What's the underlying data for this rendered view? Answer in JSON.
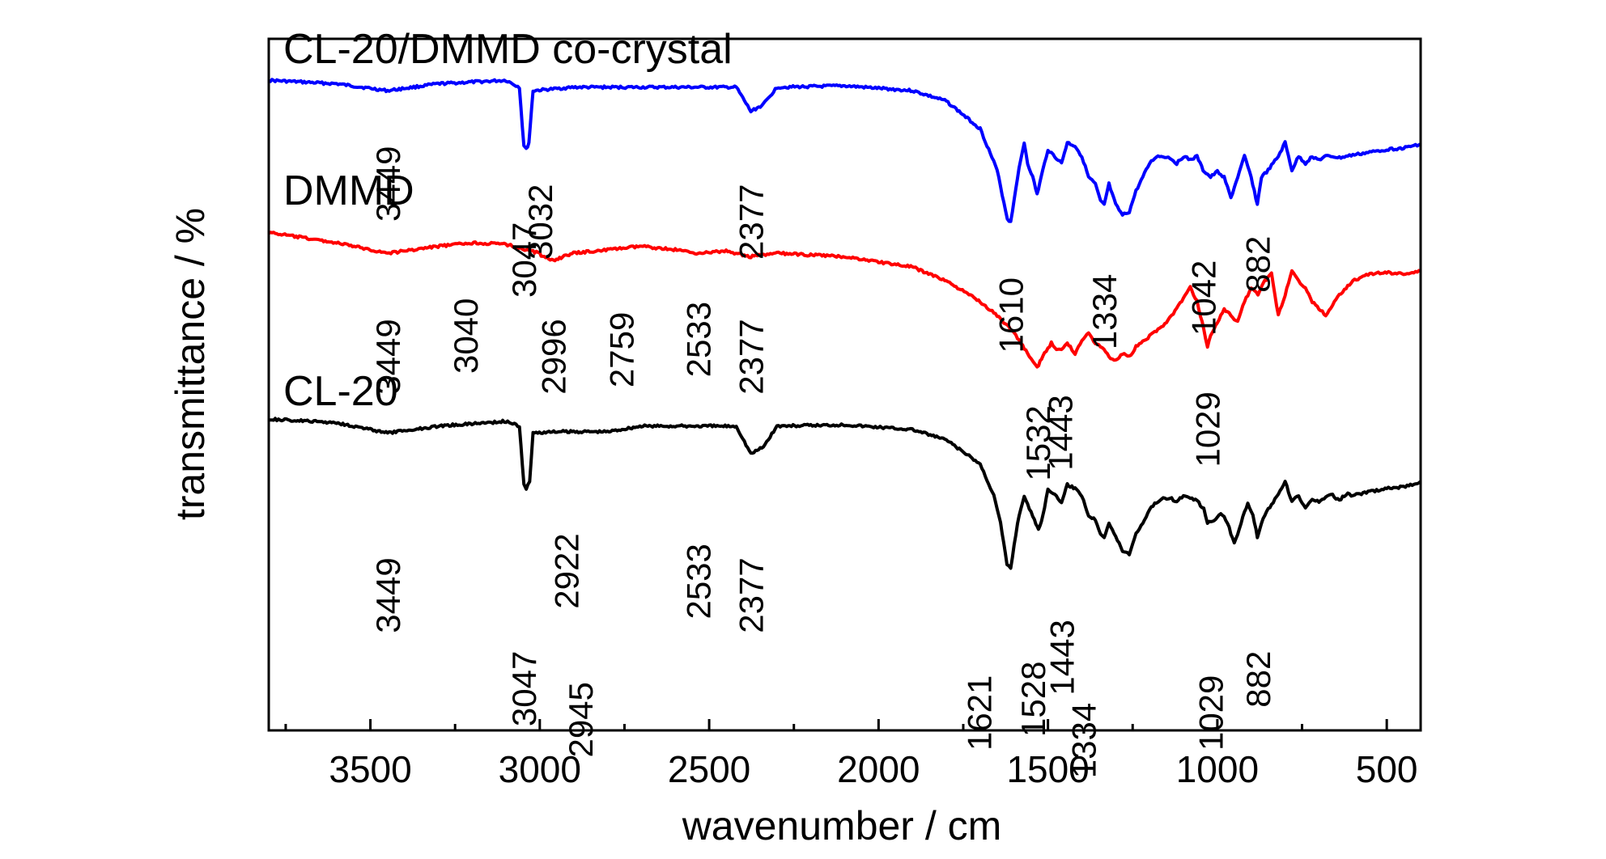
{
  "chart_data": {
    "type": "line",
    "title": "",
    "xlabel": "wavenumber / cm",
    "ylabel": "transmittance / %",
    "x_reversed": true,
    "xlim": [
      3800,
      400
    ],
    "ylim": [
      0,
      1
    ],
    "y_ticks_shown": false,
    "grid": false,
    "legend": "none",
    "x_ticks": [
      3500,
      3000,
      2500,
      2000,
      1500,
      1000,
      500
    ],
    "x_tick_labels": [
      "3500",
      "3000",
      "2500",
      "2000",
      "1500",
      "1000",
      "500"
    ],
    "series": [
      {
        "name": "CL-20/DMMD co-crystal",
        "color": "#0000ff",
        "points": [
          [
            3800,
            0.94
          ],
          [
            3600,
            0.935
          ],
          [
            3449,
            0.925
          ],
          [
            3300,
            0.935
          ],
          [
            3100,
            0.94
          ],
          [
            3060,
            0.93
          ],
          [
            3047,
            0.845
          ],
          [
            3040,
            0.84
          ],
          [
            3032,
            0.85
          ],
          [
            3020,
            0.925
          ],
          [
            2900,
            0.93
          ],
          [
            2800,
            0.93
          ],
          [
            2600,
            0.93
          ],
          [
            2420,
            0.93
          ],
          [
            2377,
            0.895
          ],
          [
            2340,
            0.905
          ],
          [
            2300,
            0.93
          ],
          [
            2100,
            0.932
          ],
          [
            1900,
            0.925
          ],
          [
            1800,
            0.91
          ],
          [
            1700,
            0.87
          ],
          [
            1650,
            0.81
          ],
          [
            1620,
            0.74
          ],
          [
            1610,
            0.735
          ],
          [
            1590,
            0.8
          ],
          [
            1570,
            0.85
          ],
          [
            1560,
            0.82
          ],
          [
            1545,
            0.8
          ],
          [
            1532,
            0.775
          ],
          [
            1520,
            0.8
          ],
          [
            1500,
            0.84
          ],
          [
            1480,
            0.83
          ],
          [
            1460,
            0.82
          ],
          [
            1443,
            0.85
          ],
          [
            1420,
            0.845
          ],
          [
            1400,
            0.83
          ],
          [
            1380,
            0.8
          ],
          [
            1360,
            0.79
          ],
          [
            1345,
            0.765
          ],
          [
            1334,
            0.76
          ],
          [
            1320,
            0.79
          ],
          [
            1300,
            0.76
          ],
          [
            1280,
            0.745
          ],
          [
            1260,
            0.75
          ],
          [
            1240,
            0.78
          ],
          [
            1220,
            0.8
          ],
          [
            1200,
            0.82
          ],
          [
            1180,
            0.83
          ],
          [
            1160,
            0.83
          ],
          [
            1140,
            0.828
          ],
          [
            1120,
            0.82
          ],
          [
            1100,
            0.83
          ],
          [
            1080,
            0.825
          ],
          [
            1060,
            0.83
          ],
          [
            1042,
            0.81
          ],
          [
            1020,
            0.8
          ],
          [
            1000,
            0.808
          ],
          [
            980,
            0.8
          ],
          [
            960,
            0.77
          ],
          [
            940,
            0.8
          ],
          [
            920,
            0.83
          ],
          [
            900,
            0.8
          ],
          [
            882,
            0.76
          ],
          [
            870,
            0.8
          ],
          [
            850,
            0.81
          ],
          [
            820,
            0.83
          ],
          [
            800,
            0.85
          ],
          [
            780,
            0.81
          ],
          [
            760,
            0.83
          ],
          [
            740,
            0.82
          ],
          [
            720,
            0.83
          ],
          [
            700,
            0.825
          ],
          [
            680,
            0.83
          ],
          [
            660,
            0.83
          ],
          [
            640,
            0.828
          ],
          [
            620,
            0.83
          ],
          [
            600,
            0.832
          ],
          [
            550,
            0.836
          ],
          [
            500,
            0.84
          ],
          [
            450,
            0.842
          ],
          [
            400,
            0.848
          ]
        ]
      },
      {
        "name": "DMMD",
        "color": "#ff0000",
        "points": [
          [
            3800,
            0.72
          ],
          [
            3600,
            0.705
          ],
          [
            3449,
            0.69
          ],
          [
            3300,
            0.7
          ],
          [
            3200,
            0.705
          ],
          [
            3100,
            0.703
          ],
          [
            3040,
            0.695
          ],
          [
            3000,
            0.69
          ],
          [
            2996,
            0.685
          ],
          [
            2960,
            0.68
          ],
          [
            2900,
            0.69
          ],
          [
            2800,
            0.695
          ],
          [
            2759,
            0.697
          ],
          [
            2700,
            0.7
          ],
          [
            2600,
            0.695
          ],
          [
            2533,
            0.69
          ],
          [
            2450,
            0.693
          ],
          [
            2377,
            0.685
          ],
          [
            2300,
            0.69
          ],
          [
            2100,
            0.685
          ],
          [
            1900,
            0.67
          ],
          [
            1800,
            0.65
          ],
          [
            1700,
            0.62
          ],
          [
            1650,
            0.6
          ],
          [
            1600,
            0.575
          ],
          [
            1560,
            0.545
          ],
          [
            1540,
            0.53
          ],
          [
            1532,
            0.525
          ],
          [
            1510,
            0.545
          ],
          [
            1490,
            0.56
          ],
          [
            1470,
            0.55
          ],
          [
            1450,
            0.555
          ],
          [
            1443,
            0.56
          ],
          [
            1420,
            0.545
          ],
          [
            1400,
            0.565
          ],
          [
            1380,
            0.575
          ],
          [
            1360,
            0.56
          ],
          [
            1340,
            0.555
          ],
          [
            1320,
            0.54
          ],
          [
            1300,
            0.535
          ],
          [
            1280,
            0.545
          ],
          [
            1260,
            0.54
          ],
          [
            1240,
            0.555
          ],
          [
            1200,
            0.57
          ],
          [
            1150,
            0.59
          ],
          [
            1120,
            0.61
          ],
          [
            1100,
            0.625
          ],
          [
            1080,
            0.64
          ],
          [
            1060,
            0.62
          ],
          [
            1040,
            0.58
          ],
          [
            1029,
            0.555
          ],
          [
            1020,
            0.57
          ],
          [
            1000,
            0.59
          ],
          [
            980,
            0.61
          ],
          [
            960,
            0.6
          ],
          [
            940,
            0.59
          ],
          [
            920,
            0.62
          ],
          [
            900,
            0.64
          ],
          [
            880,
            0.63
          ],
          [
            860,
            0.65
          ],
          [
            840,
            0.66
          ],
          [
            820,
            0.6
          ],
          [
            800,
            0.63
          ],
          [
            780,
            0.665
          ],
          [
            760,
            0.65
          ],
          [
            740,
            0.64
          ],
          [
            720,
            0.62
          ],
          [
            700,
            0.61
          ],
          [
            680,
            0.6
          ],
          [
            660,
            0.615
          ],
          [
            640,
            0.63
          ],
          [
            620,
            0.64
          ],
          [
            600,
            0.65
          ],
          [
            550,
            0.66
          ],
          [
            500,
            0.662
          ],
          [
            450,
            0.66
          ],
          [
            400,
            0.664
          ]
        ]
      },
      {
        "name": "CL-20",
        "color": "#000000",
        "points": [
          [
            3800,
            0.45
          ],
          [
            3600,
            0.445
          ],
          [
            3449,
            0.43
          ],
          [
            3300,
            0.44
          ],
          [
            3100,
            0.447
          ],
          [
            3060,
            0.44
          ],
          [
            3047,
            0.355
          ],
          [
            3040,
            0.35
          ],
          [
            3030,
            0.36
          ],
          [
            3020,
            0.43
          ],
          [
            2945,
            0.432
          ],
          [
            2922,
            0.432
          ],
          [
            2900,
            0.432
          ],
          [
            2800,
            0.432
          ],
          [
            2700,
            0.44
          ],
          [
            2600,
            0.44
          ],
          [
            2533,
            0.44
          ],
          [
            2420,
            0.44
          ],
          [
            2377,
            0.4
          ],
          [
            2340,
            0.41
          ],
          [
            2300,
            0.44
          ],
          [
            2100,
            0.442
          ],
          [
            1900,
            0.435
          ],
          [
            1800,
            0.42
          ],
          [
            1700,
            0.385
          ],
          [
            1660,
            0.34
          ],
          [
            1640,
            0.3
          ],
          [
            1621,
            0.24
          ],
          [
            1610,
            0.235
          ],
          [
            1590,
            0.3
          ],
          [
            1570,
            0.34
          ],
          [
            1555,
            0.32
          ],
          [
            1540,
            0.305
          ],
          [
            1528,
            0.29
          ],
          [
            1515,
            0.31
          ],
          [
            1500,
            0.35
          ],
          [
            1480,
            0.34
          ],
          [
            1460,
            0.33
          ],
          [
            1443,
            0.355
          ],
          [
            1420,
            0.35
          ],
          [
            1400,
            0.34
          ],
          [
            1380,
            0.31
          ],
          [
            1360,
            0.305
          ],
          [
            1345,
            0.285
          ],
          [
            1334,
            0.28
          ],
          [
            1320,
            0.3
          ],
          [
            1300,
            0.28
          ],
          [
            1280,
            0.26
          ],
          [
            1260,
            0.255
          ],
          [
            1240,
            0.285
          ],
          [
            1220,
            0.3
          ],
          [
            1200,
            0.32
          ],
          [
            1180,
            0.33
          ],
          [
            1160,
            0.335
          ],
          [
            1140,
            0.337
          ],
          [
            1120,
            0.33
          ],
          [
            1100,
            0.34
          ],
          [
            1080,
            0.335
          ],
          [
            1060,
            0.332
          ],
          [
            1040,
            0.32
          ],
          [
            1029,
            0.3
          ],
          [
            1010,
            0.303
          ],
          [
            990,
            0.315
          ],
          [
            970,
            0.3
          ],
          [
            950,
            0.27
          ],
          [
            930,
            0.3
          ],
          [
            910,
            0.33
          ],
          [
            895,
            0.31
          ],
          [
            882,
            0.28
          ],
          [
            870,
            0.3
          ],
          [
            850,
            0.32
          ],
          [
            820,
            0.34
          ],
          [
            800,
            0.36
          ],
          [
            780,
            0.33
          ],
          [
            760,
            0.34
          ],
          [
            740,
            0.32
          ],
          [
            720,
            0.335
          ],
          [
            700,
            0.33
          ],
          [
            680,
            0.338
          ],
          [
            660,
            0.34
          ],
          [
            640,
            0.332
          ],
          [
            620,
            0.342
          ],
          [
            600,
            0.34
          ],
          [
            550,
            0.345
          ],
          [
            500,
            0.35
          ],
          [
            450,
            0.352
          ],
          [
            400,
            0.36
          ]
        ]
      }
    ],
    "series_labels": [
      {
        "text": "CL-20/DMMD co-crystal",
        "x": 3757,
        "y": 0.965,
        "color": "#000000"
      },
      {
        "text": "DMMD",
        "x": 3757,
        "y": 0.76,
        "color": "#000000"
      },
      {
        "text": "CL-20",
        "x": 3757,
        "y": 0.47,
        "color": "#000000"
      }
    ],
    "peak_labels": [
      {
        "text": "3449",
        "x": 3449,
        "y": 0.845
      },
      {
        "text": "3047",
        "x": 3047,
        "y": 0.735
      },
      {
        "text": "3032",
        "x": 3000,
        "y": 0.79
      },
      {
        "text": "2377",
        "x": 2377,
        "y": 0.79
      },
      {
        "text": "1610",
        "x": 1610,
        "y": 0.655
      },
      {
        "text": "1334",
        "x": 1334,
        "y": 0.66
      },
      {
        "text": "1042",
        "x": 1042,
        "y": 0.68
      },
      {
        "text": "882",
        "x": 882,
        "y": 0.715
      },
      {
        "text": "3449",
        "x": 3449,
        "y": 0.595
      },
      {
        "text": "3040",
        "x": 3219,
        "y": 0.625
      },
      {
        "text": "2996",
        "x": 2960,
        "y": 0.595
      },
      {
        "text": "2759",
        "x": 2759,
        "y": 0.605
      },
      {
        "text": "2533",
        "x": 2533,
        "y": 0.62
      },
      {
        "text": "2377",
        "x": 2377,
        "y": 0.595
      },
      {
        "text": "1532",
        "x": 1530,
        "y": 0.47
      },
      {
        "text": "1443",
        "x": 1465,
        "y": 0.485
      },
      {
        "text": "1029",
        "x": 1029,
        "y": 0.49
      },
      {
        "text": "3449",
        "x": 3449,
        "y": 0.25
      },
      {
        "text": "3047",
        "x": 3047,
        "y": 0.115
      },
      {
        "text": "2922",
        "x": 2922,
        "y": 0.285
      },
      {
        "text": "2945",
        "x": 2880,
        "y": 0.07
      },
      {
        "text": "2533",
        "x": 2533,
        "y": 0.27
      },
      {
        "text": "2377",
        "x": 2377,
        "y": 0.25
      },
      {
        "text": "1621",
        "x": 1703,
        "y": 0.08
      },
      {
        "text": "1528",
        "x": 1545,
        "y": 0.1
      },
      {
        "text": "1443",
        "x": 1460,
        "y": 0.16
      },
      {
        "text": "1334",
        "x": 1395,
        "y": 0.04
      },
      {
        "text": "1029",
        "x": 1020,
        "y": 0.08
      },
      {
        "text": "882",
        "x": 880,
        "y": 0.115
      }
    ]
  }
}
